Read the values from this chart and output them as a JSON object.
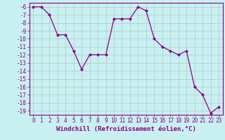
{
  "x": [
    0,
    1,
    2,
    3,
    4,
    5,
    6,
    7,
    8,
    9,
    10,
    11,
    12,
    13,
    14,
    15,
    16,
    17,
    18,
    19,
    20,
    21,
    22,
    23
  ],
  "y": [
    -6,
    -6,
    -7,
    -9.5,
    -9.5,
    -11.5,
    -13.8,
    -12,
    -12,
    -12,
    -7.5,
    -7.5,
    -7.5,
    -6,
    -6.5,
    -10,
    -11,
    -11.5,
    -12,
    -11.5,
    -16,
    -17,
    -19.3,
    -18.5
  ],
  "line_color": "#880088",
  "marker": "D",
  "marker_size": 2,
  "bg_color": "#c8f0f0",
  "grid_color": "#b0c8c8",
  "xlabel": "Windchill (Refroidissement éolien,°C)",
  "xlabel_fontsize": 6.5,
  "tick_fontsize": 5.5,
  "ylim": [
    -19.5,
    -5.5
  ],
  "xlim": [
    -0.5,
    23.5
  ],
  "yticks": [
    -6,
    -7,
    -8,
    -9,
    -10,
    -11,
    -12,
    -13,
    -14,
    -15,
    -16,
    -17,
    -18,
    -19
  ],
  "xticks": [
    0,
    1,
    2,
    3,
    4,
    5,
    6,
    7,
    8,
    9,
    10,
    11,
    12,
    13,
    14,
    15,
    16,
    17,
    18,
    19,
    20,
    21,
    22,
    23
  ]
}
